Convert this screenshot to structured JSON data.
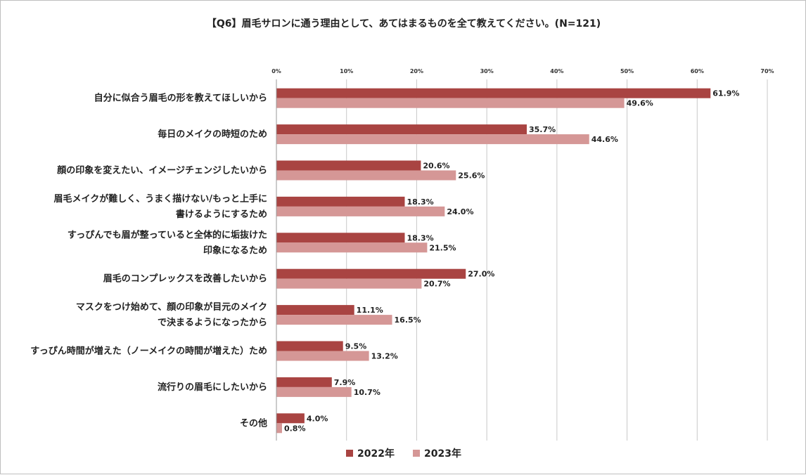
{
  "chart_data": {
    "type": "bar",
    "orientation": "horizontal",
    "title": "【Q6】眉毛サロンに通う理由として、あてはまるものを全て教えてください。(N=121)",
    "xlabel": "",
    "ylabel": "",
    "xlim": [
      0,
      70
    ],
    "xticks": [
      "0%",
      "10%",
      "20%",
      "30%",
      "40%",
      "50%",
      "60%",
      "70%"
    ],
    "grid": true,
    "legend_position": "bottom",
    "categories": [
      [
        "自分に似合う眉毛の形を教えてほしいから"
      ],
      [
        "毎日のメイクの時短のため"
      ],
      [
        "顔の印象を変えたい、イメージチェンジしたいから"
      ],
      [
        "眉毛メイクが難しく、うまく描けない/もっと上手に",
        "書けるようにするため"
      ],
      [
        "すっぴんでも眉が整っていると全体的に垢抜けた",
        "印象になるため"
      ],
      [
        "眉毛のコンプレックスを改善したいから"
      ],
      [
        "マスクをつけ始めて、顔の印象が目元のメイク",
        "で決まるようになったから"
      ],
      [
        "すっぴん時間が増えた（ノーメイクの時間が増えた）ため"
      ],
      [
        "流行りの眉毛にしたいから"
      ],
      [
        "その他"
      ]
    ],
    "series": [
      {
        "name": "2022年",
        "color": "#a94442",
        "values": [
          61.9,
          35.7,
          20.6,
          18.3,
          18.3,
          27.0,
          11.1,
          9.5,
          7.9,
          4.0
        ],
        "labels": [
          "61.9%",
          "35.7%",
          "20.6%",
          "18.3%",
          "18.3%",
          "27.0%",
          "11.1%",
          "9.5%",
          "7.9%",
          "4.0%"
        ]
      },
      {
        "name": "2023年",
        "color": "#d59796",
        "values": [
          49.6,
          44.6,
          25.6,
          24.0,
          21.5,
          20.7,
          16.5,
          13.2,
          10.7,
          0.8
        ],
        "labels": [
          "49.6%",
          "44.6%",
          "25.6%",
          "24.0%",
          "21.5%",
          "20.7%",
          "16.5%",
          "13.2%",
          "10.7%",
          "0.8%"
        ]
      }
    ]
  }
}
